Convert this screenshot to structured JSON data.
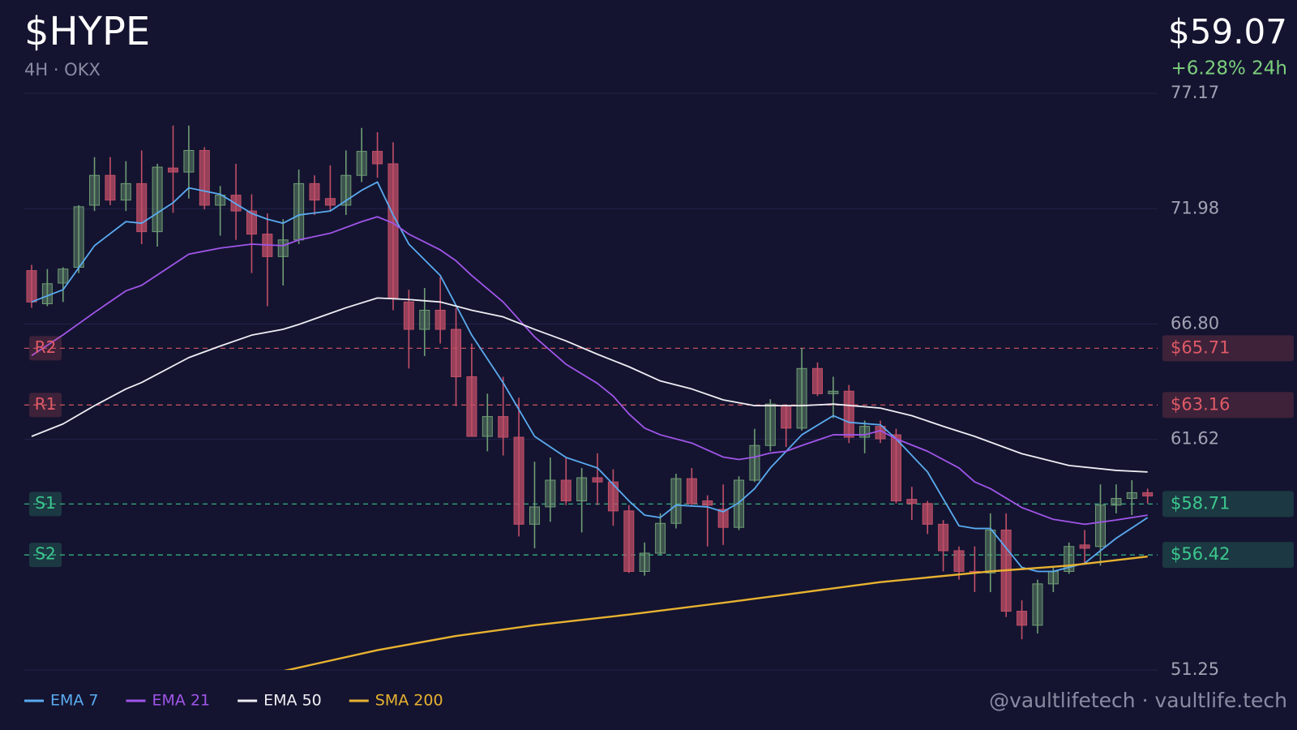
{
  "chart_data": {
    "type": "candlestick",
    "title": "$HYPE",
    "subtitle": "4H · OKX",
    "price": "$59.07",
    "change": "+6.28% 24h",
    "footer": "@vaultlifetech · vaultlife.tech",
    "ylim": [
      51.25,
      77.17
    ],
    "yticks": [
      77.17,
      71.98,
      {
        "value": 66.8,
        "label": "66.80"
      },
      61.62,
      51.25
    ],
    "grid": true,
    "up_color": "#6f9e74",
    "down_color": "#c24f68",
    "candles": {
      "open": [
        69.2,
        67.71,
        68.64,
        69.35,
        72.14,
        73.48,
        72.37,
        73.11,
        70.95,
        73.81,
        73.63,
        74.6,
        72.14,
        72.59,
        71.88,
        70.84,
        69.83,
        70.58,
        73.11,
        72.44,
        72.14,
        73.48,
        74.56,
        74.0,
        67.79,
        66.56,
        67.42,
        66.56,
        64.43,
        61.75,
        62.64,
        61.71,
        57.8,
        58.58,
        59.78,
        58.85,
        59.89,
        59.7,
        58.4,
        55.68,
        56.5,
        57.84,
        59.85,
        58.85,
        58.47,
        57.66,
        59.78,
        61.34,
        63.13,
        62.12,
        64.8,
        63.67,
        63.78,
        61.71,
        62.2,
        61.82,
        58.92,
        58.73,
        57.8,
        56.61,
        55.68,
        55.61,
        57.54,
        53.89,
        53.26,
        55.12,
        55.68,
        56.87,
        56.8,
        58.66,
        58.96,
        59.22
      ],
      "high": [
        69.46,
        69.27,
        69.35,
        72.14,
        74.3,
        74.3,
        74.12,
        74.6,
        74.0,
        75.72,
        75.72,
        74.75,
        73.0,
        74.0,
        72.63,
        71.77,
        71.51,
        73.74,
        73.48,
        73.93,
        74.6,
        75.61,
        75.42,
        74.97,
        68.34,
        68.42,
        68.9,
        67.53,
        65.92,
        63.67,
        64.43,
        63.49,
        60.61,
        60.8,
        60.8,
        60.33,
        60.99,
        60.27,
        58.66,
        56.98,
        58.29,
        60.07,
        60.33,
        59.1,
        59.59,
        59.96,
        62.09,
        63.42,
        63.2,
        65.73,
        65.07,
        64.43,
        64.06,
        62.46,
        62.46,
        62.09,
        59.48,
        58.85,
        57.99,
        56.8,
        56.8,
        58.29,
        58.29,
        54.38,
        55.31,
        55.86,
        56.98,
        57.54,
        59.59,
        59.59,
        59.78,
        59.4
      ],
      "low": [
        67.53,
        67.6,
        67.79,
        69.09,
        71.88,
        72.14,
        71.88,
        70.39,
        70.28,
        71.8,
        72.44,
        71.95,
        70.77,
        70.58,
        69.09,
        67.6,
        68.53,
        70.39,
        71.7,
        71.88,
        71.7,
        73.18,
        73.37,
        67.42,
        64.8,
        65.36,
        65.92,
        63.11,
        61.75,
        61.08,
        60.89,
        57.25,
        56.72,
        57.91,
        58.66,
        57.43,
        58.66,
        57.73,
        55.61,
        55.49,
        56.43,
        57.61,
        58.66,
        56.8,
        56.87,
        57.54,
        59.7,
        61.08,
        61.27,
        62.01,
        63.56,
        62.57,
        61.45,
        60.99,
        61.45,
        58.73,
        57.99,
        57.36,
        55.68,
        55.31,
        54.75,
        54.75,
        53.63,
        52.63,
        52.89,
        54.75,
        55.57,
        56.05,
        55.94,
        58.29,
        58.21,
        58.73
      ],
      "close": [
        67.79,
        68.61,
        69.27,
        72.07,
        73.48,
        72.37,
        73.11,
        70.95,
        73.85,
        73.63,
        74.6,
        72.14,
        72.59,
        71.88,
        70.84,
        69.83,
        70.58,
        73.11,
        72.37,
        72.14,
        73.48,
        74.56,
        74.0,
        67.97,
        66.56,
        67.42,
        66.56,
        64.43,
        61.75,
        62.64,
        61.71,
        57.8,
        58.58,
        59.78,
        58.85,
        59.89,
        59.7,
        58.4,
        55.68,
        56.5,
        57.84,
        59.85,
        58.73,
        58.66,
        57.66,
        59.78,
        61.34,
        63.2,
        62.12,
        64.8,
        63.67,
        63.78,
        61.71,
        62.2,
        61.64,
        58.85,
        58.73,
        57.8,
        56.61,
        55.68,
        55.61,
        57.54,
        53.89,
        53.26,
        55.12,
        55.68,
        56.8,
        56.72,
        58.66,
        58.96,
        59.22,
        59.07
      ]
    },
    "series": [
      {
        "name": "EMA 7",
        "color": "#5aabf0",
        "x": [
          0,
          2,
          4,
          6,
          7,
          9,
          10,
          12,
          14,
          15,
          16,
          17,
          19,
          21,
          22,
          23,
          24,
          26,
          28,
          30,
          32,
          34,
          36,
          38,
          39,
          40,
          41,
          43,
          44,
          45,
          46,
          47,
          49,
          51,
          52,
          54,
          55,
          57,
          59,
          60,
          61,
          63,
          64,
          65,
          67,
          69,
          71
        ],
        "values": [
          67.79,
          68.34,
          70.32,
          71.4,
          71.33,
          72.25,
          72.92,
          72.63,
          71.77,
          71.51,
          71.33,
          71.7,
          71.88,
          72.81,
          73.18,
          71.7,
          70.39,
          68.98,
          66.3,
          64.16,
          61.75,
          60.8,
          60.33,
          58.85,
          58.21,
          58.1,
          58.66,
          58.58,
          58.36,
          58.77,
          59.4,
          60.33,
          61.82,
          62.68,
          62.38,
          62.27,
          61.64,
          60.15,
          57.73,
          57.61,
          57.61,
          55.86,
          55.68,
          55.68,
          56.05,
          57.17,
          58.1
        ]
      },
      {
        "name": "EMA 21",
        "color": "#a055e8",
        "x": [
          0,
          2,
          4,
          6,
          7,
          10,
          12,
          14,
          16,
          17,
          19,
          21,
          22,
          23,
          24,
          26,
          27,
          28,
          30,
          32,
          34,
          36,
          37,
          38,
          39,
          40,
          42,
          44,
          45,
          46,
          47,
          48,
          49,
          51,
          53,
          54,
          55,
          57,
          59,
          60,
          61,
          63,
          65,
          67,
          69,
          71
        ],
        "values": [
          65.38,
          66.31,
          67.32,
          68.29,
          68.54,
          69.94,
          70.21,
          70.39,
          70.32,
          70.58,
          70.88,
          71.4,
          71.62,
          71.33,
          70.84,
          70.13,
          69.64,
          68.98,
          67.79,
          66.22,
          64.99,
          64.13,
          63.56,
          62.76,
          62.12,
          61.82,
          61.45,
          60.82,
          60.71,
          60.82,
          61.0,
          61.08,
          61.34,
          61.82,
          61.82,
          62.01,
          61.64,
          61.08,
          60.33,
          59.7,
          59.4,
          58.55,
          58.02,
          57.8,
          57.99,
          58.21
        ]
      },
      {
        "name": "EMA 50",
        "color": "#eeeef4",
        "x": [
          0,
          2,
          4,
          6,
          7,
          10,
          12,
          14,
          16,
          17,
          20,
          22,
          24,
          26,
          28,
          30,
          32,
          34,
          36,
          38,
          40,
          42,
          44,
          46,
          49,
          51,
          54,
          56,
          58,
          60,
          63,
          66,
          69,
          71
        ],
        "values": [
          61.75,
          62.31,
          63.13,
          63.88,
          64.17,
          65.29,
          65.81,
          66.3,
          66.56,
          66.78,
          67.53,
          67.97,
          67.9,
          67.79,
          67.42,
          67.12,
          66.56,
          66.04,
          65.44,
          64.88,
          64.24,
          63.88,
          63.39,
          63.13,
          63.13,
          63.2,
          63.02,
          62.68,
          62.2,
          61.75,
          60.97,
          60.44,
          60.22,
          60.15
        ]
      },
      {
        "name": "SMA 200",
        "color": "#e8b230",
        "x": [
          16,
          22,
          27,
          32,
          38,
          44,
          48,
          54,
          61,
          66,
          71
        ],
        "values": [
          51.2,
          52.14,
          52.78,
          53.26,
          53.74,
          54.27,
          54.64,
          55.2,
          55.68,
          55.94,
          56.35
        ]
      }
    ],
    "levels": {
      "names": [
        "R2",
        "R1",
        "S1",
        "S2"
      ],
      "values": [
        65.71,
        63.16,
        58.71,
        56.42
      ],
      "value_labels": [
        "$65.71",
        "$63.16",
        "$58.71",
        "$56.42"
      ],
      "colors": [
        "#e05a66",
        "#e05a66",
        "#3cc88e",
        "#3cc88e"
      ]
    }
  }
}
